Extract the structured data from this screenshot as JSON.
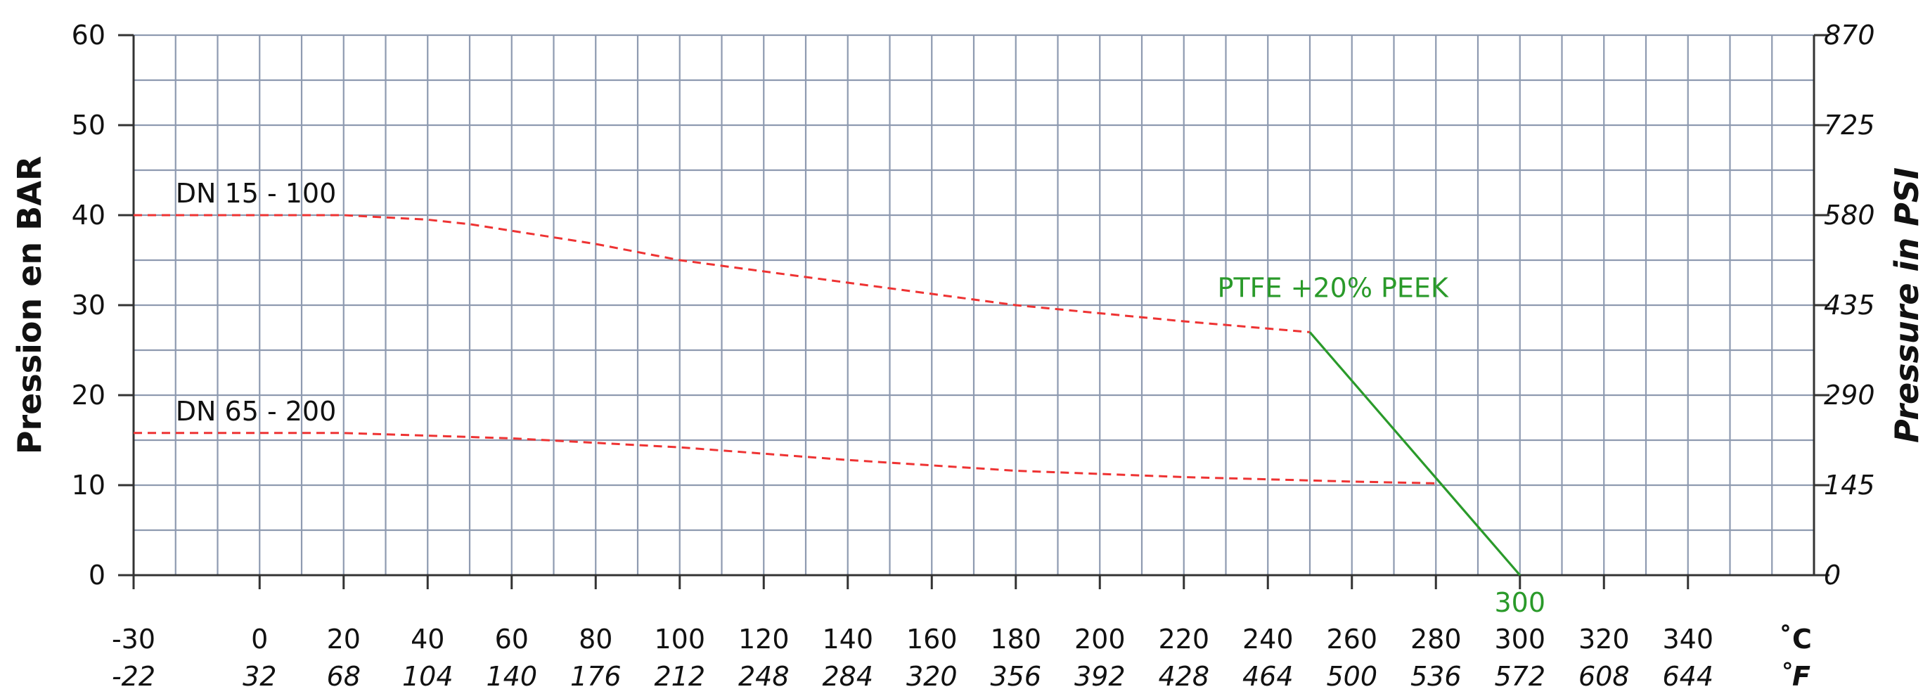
{
  "chart_data": {
    "type": "line",
    "title": "",
    "ylabel_left": "Pression en BAR",
    "ylabel_right": "Pressure in PSI",
    "x_unit_celsius": "˚C",
    "x_unit_fahrenheit": "˚F",
    "xlim": [
      -30,
      370
    ],
    "ylim": [
      0,
      60
    ],
    "x_ticks_c": [
      "-30",
      "0",
      "20",
      "40",
      "60",
      "80",
      "100",
      "120",
      "140",
      "160",
      "180",
      "200",
      "220",
      "240",
      "260",
      "280",
      "300",
      "320",
      "340"
    ],
    "x_ticks_f": [
      "-22",
      "32",
      "68",
      "104",
      "140",
      "176",
      "212",
      "248",
      "284",
      "320",
      "356",
      "392",
      "428",
      "464",
      "500",
      "536",
      "572",
      "608",
      "644"
    ],
    "y_ticks_left": [
      "0",
      "10",
      "20",
      "30",
      "40",
      "50",
      "60"
    ],
    "y_ticks_right": [
      "0",
      "145",
      "290",
      "435",
      "580",
      "725",
      "870"
    ],
    "grid": true,
    "series": [
      {
        "name": "DN 15 - 100",
        "color": "#ee3333",
        "style": "dashed",
        "points": [
          [
            -30,
            40
          ],
          [
            0,
            40
          ],
          [
            20,
            40
          ],
          [
            40,
            39.5
          ],
          [
            50,
            39
          ],
          [
            80,
            36.8
          ],
          [
            100,
            35
          ],
          [
            140,
            32.5
          ],
          [
            180,
            30
          ],
          [
            220,
            28.2
          ],
          [
            250,
            27
          ]
        ]
      },
      {
        "name": "DN 65 - 200",
        "color": "#ee3333",
        "style": "dashed",
        "points": [
          [
            -30,
            15.8
          ],
          [
            20,
            15.8
          ],
          [
            60,
            15.2
          ],
          [
            100,
            14.2
          ],
          [
            140,
            12.8
          ],
          [
            180,
            11.6
          ],
          [
            220,
            10.9
          ],
          [
            260,
            10.4
          ],
          [
            280,
            10.2
          ]
        ]
      },
      {
        "name": "PTFE +20% PEEK",
        "color": "#2a9a2a",
        "style": "solid",
        "points": [
          [
            250,
            27
          ],
          [
            300,
            0
          ]
        ]
      }
    ],
    "annotations": [
      {
        "text": "300",
        "x": 300,
        "y": 0,
        "color": "#2a9a2a"
      }
    ]
  }
}
